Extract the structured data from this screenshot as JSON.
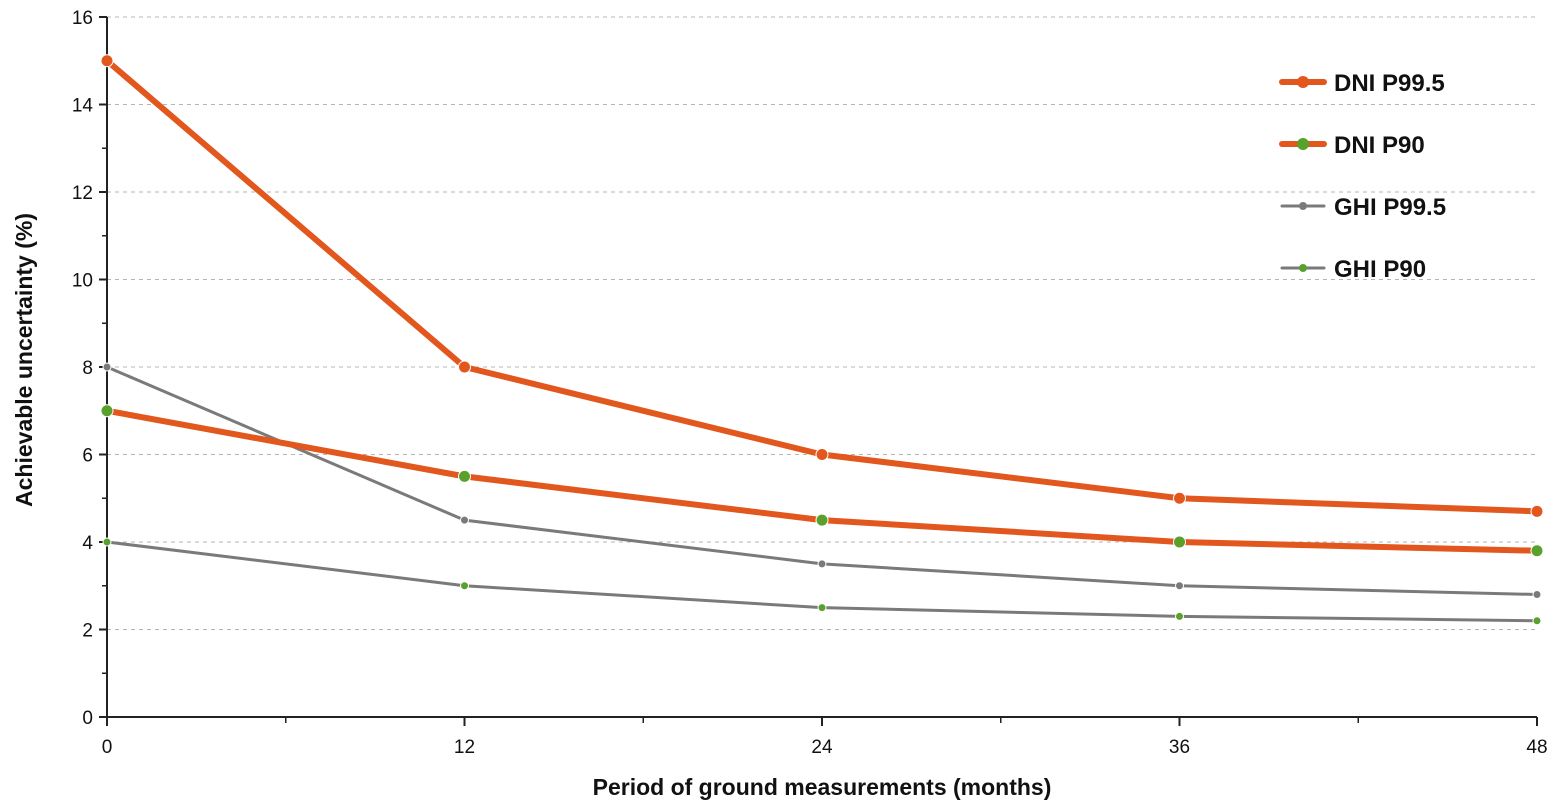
{
  "chart_data": {
    "type": "line",
    "title": "",
    "xlabel": "Period of ground measurements (months)",
    "ylabel": "Achievable uncertainty (%)",
    "x": [
      0,
      12,
      24,
      36,
      48
    ],
    "x_ticks": [
      "0",
      "12",
      "24",
      "36",
      "48"
    ],
    "xlim": [
      0,
      48
    ],
    "y_ticks": [
      "0",
      "2",
      "4",
      "6",
      "8",
      "10",
      "12",
      "14",
      "16"
    ],
    "ylim": [
      0,
      16
    ],
    "grid": "horizontal dashed",
    "legend_position": "top-right",
    "series": [
      {
        "name": "DNI P99.5",
        "values": [
          15,
          8,
          6,
          5,
          4.7
        ],
        "color": "#e2571d",
        "marker_color": "#e2571d",
        "style": "thick"
      },
      {
        "name": "DNI P90",
        "values": [
          7,
          5.5,
          4.5,
          4,
          3.8
        ],
        "color": "#e2571d",
        "marker_color": "#5aa02c",
        "style": "thick"
      },
      {
        "name": "GHI P99.5",
        "values": [
          8,
          4.5,
          3.5,
          3,
          2.8
        ],
        "color": "#7a7a7a",
        "marker_color": "#7a7a7a",
        "style": "thin"
      },
      {
        "name": "GHI P90",
        "values": [
          4,
          3,
          2.5,
          2.3,
          2.2
        ],
        "color": "#7a7a7a",
        "marker_color": "#5aa02c",
        "style": "thin"
      }
    ]
  }
}
